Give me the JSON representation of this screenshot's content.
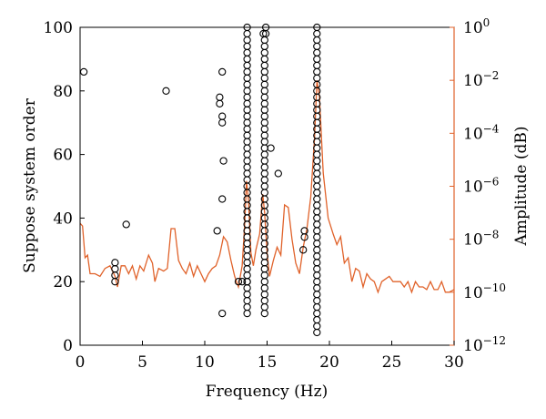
{
  "chart_data": {
    "type": "scatter",
    "xlabel": "Frequency (Hz)",
    "ylabel_left": "Suppose system order",
    "ylabel_right": "Amplitude (dB)",
    "xlim": [
      0,
      30
    ],
    "ylim_left": [
      0,
      100
    ],
    "ylim_right_log10": [
      -12,
      0
    ],
    "x_ticks": [
      "0",
      "5",
      "10",
      "15",
      "20",
      "25",
      "30"
    ],
    "y_ticks_left": [
      "0",
      "20",
      "40",
      "60",
      "80",
      "100"
    ],
    "y_ticks_right": [
      {
        "base": "10",
        "exp": "0"
      },
      {
        "base": "10",
        "exp": "−2"
      },
      {
        "base": "10",
        "exp": "−4"
      },
      {
        "base": "10",
        "exp": "−6"
      },
      {
        "base": "10",
        "exp": "−8"
      },
      {
        "base": "10",
        "exp": "−10"
      },
      {
        "base": "10",
        "exp": "−12"
      }
    ],
    "grid": false,
    "colors": {
      "stabilization_markers": "#000000",
      "amplitude_line": "#e0622a",
      "right_axis": "#e0622a"
    },
    "scatter_points": [
      [
        0.3,
        86
      ],
      [
        2.8,
        26
      ],
      [
        2.8,
        24
      ],
      [
        2.8,
        22
      ],
      [
        2.8,
        20
      ],
      [
        3.7,
        38
      ],
      [
        6.9,
        80
      ],
      [
        11.0,
        36
      ],
      [
        11.2,
        78
      ],
      [
        11.2,
        76
      ],
      [
        11.4,
        86
      ],
      [
        11.4,
        72
      ],
      [
        11.4,
        70
      ],
      [
        11.5,
        58
      ],
      [
        11.4,
        46
      ],
      [
        11.4,
        10
      ],
      [
        12.7,
        20
      ],
      [
        13.0,
        20
      ],
      [
        13.4,
        20
      ],
      [
        14.9,
        100
      ],
      [
        14.9,
        98
      ],
      [
        14.7,
        98
      ],
      [
        15.3,
        62
      ],
      [
        15.9,
        54
      ],
      [
        18.0,
        36
      ],
      [
        18.0,
        34
      ],
      [
        17.9,
        30
      ]
    ],
    "scatter_columns": [
      {
        "x": 13.4,
        "from": 10,
        "to": 100,
        "step": 2
      },
      {
        "x": 14.8,
        "from": 10,
        "to": 96,
        "step": 2
      },
      {
        "x": 19.0,
        "from": 4,
        "to": 100,
        "step": 2
      }
    ],
    "amplitude_series": {
      "name": "",
      "points": [
        [
          0.0,
          -7.4
        ],
        [
          0.2,
          -7.5
        ],
        [
          0.4,
          -8.7
        ],
        [
          0.6,
          -8.6
        ],
        [
          0.8,
          -9.3
        ],
        [
          1.2,
          -9.3
        ],
        [
          1.6,
          -9.4
        ],
        [
          2.0,
          -9.1
        ],
        [
          2.4,
          -9.0
        ],
        [
          2.8,
          -9.4
        ],
        [
          3.0,
          -9.8
        ],
        [
          3.3,
          -9.0
        ],
        [
          3.6,
          -9.0
        ],
        [
          3.9,
          -9.3
        ],
        [
          4.2,
          -9.0
        ],
        [
          4.5,
          -9.5
        ],
        [
          4.8,
          -9.0
        ],
        [
          5.1,
          -9.2
        ],
        [
          5.5,
          -8.6
        ],
        [
          5.8,
          -8.9
        ],
        [
          6.0,
          -9.6
        ],
        [
          6.3,
          -9.1
        ],
        [
          6.7,
          -9.2
        ],
        [
          7.0,
          -9.1
        ],
        [
          7.3,
          -7.6
        ],
        [
          7.6,
          -7.6
        ],
        [
          7.9,
          -8.8
        ],
        [
          8.2,
          -9.1
        ],
        [
          8.5,
          -9.3
        ],
        [
          8.8,
          -8.9
        ],
        [
          9.1,
          -9.4
        ],
        [
          9.4,
          -9.0
        ],
        [
          9.7,
          -9.3
        ],
        [
          10.0,
          -9.6
        ],
        [
          10.3,
          -9.3
        ],
        [
          10.6,
          -9.1
        ],
        [
          10.9,
          -9.0
        ],
        [
          11.2,
          -8.6
        ],
        [
          11.5,
          -7.9
        ],
        [
          11.8,
          -8.1
        ],
        [
          12.1,
          -8.8
        ],
        [
          12.4,
          -9.4
        ],
        [
          12.7,
          -9.8
        ],
        [
          13.0,
          -9.0
        ],
        [
          13.2,
          -7.5
        ],
        [
          13.35,
          -5.8
        ],
        [
          13.5,
          -6.5
        ],
        [
          13.7,
          -8.5
        ],
        [
          13.9,
          -9.0
        ],
        [
          14.1,
          -8.4
        ],
        [
          14.4,
          -7.8
        ],
        [
          14.65,
          -6.3
        ],
        [
          14.8,
          -7.0
        ],
        [
          15.0,
          -8.5
        ],
        [
          15.2,
          -9.4
        ],
        [
          15.5,
          -8.8
        ],
        [
          15.8,
          -8.3
        ],
        [
          16.1,
          -8.6
        ],
        [
          16.4,
          -6.7
        ],
        [
          16.7,
          -6.8
        ],
        [
          17.0,
          -8.0
        ],
        [
          17.3,
          -8.9
        ],
        [
          17.6,
          -9.3
        ],
        [
          17.9,
          -8.3
        ],
        [
          18.2,
          -7.6
        ],
        [
          18.5,
          -6.4
        ],
        [
          18.8,
          -4.2
        ],
        [
          19.0,
          -2.0
        ],
        [
          19.2,
          -2.6
        ],
        [
          19.5,
          -5.5
        ],
        [
          19.9,
          -7.2
        ],
        [
          20.3,
          -7.8
        ],
        [
          20.6,
          -8.2
        ],
        [
          20.9,
          -7.9
        ],
        [
          21.2,
          -8.9
        ],
        [
          21.5,
          -8.7
        ],
        [
          21.8,
          -9.6
        ],
        [
          22.1,
          -9.1
        ],
        [
          22.4,
          -9.2
        ],
        [
          22.7,
          -9.8
        ],
        [
          23.0,
          -9.3
        ],
        [
          23.3,
          -9.5
        ],
        [
          23.6,
          -9.6
        ],
        [
          23.9,
          -10.0
        ],
        [
          24.2,
          -9.6
        ],
        [
          24.5,
          -9.5
        ],
        [
          24.8,
          -9.4
        ],
        [
          25.1,
          -9.6
        ],
        [
          25.4,
          -9.6
        ],
        [
          25.7,
          -9.6
        ],
        [
          26.0,
          -9.8
        ],
        [
          26.3,
          -9.6
        ],
        [
          26.6,
          -10.0
        ],
        [
          26.9,
          -9.6
        ],
        [
          27.2,
          -9.8
        ],
        [
          27.5,
          -9.8
        ],
        [
          27.8,
          -9.9
        ],
        [
          28.1,
          -9.6
        ],
        [
          28.4,
          -9.9
        ],
        [
          28.7,
          -9.9
        ],
        [
          29.0,
          -9.6
        ],
        [
          29.3,
          -10.0
        ],
        [
          29.6,
          -10.0
        ],
        [
          30.0,
          -9.9
        ]
      ]
    }
  }
}
